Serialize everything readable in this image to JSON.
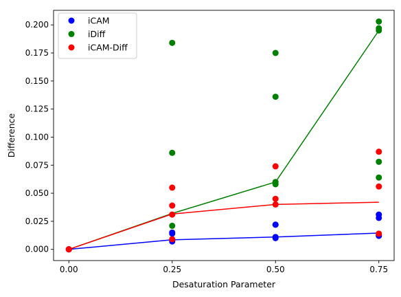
{
  "chart_data": {
    "type": "scatter",
    "title": "",
    "xlabel": "Desaturation Parameter",
    "ylabel": "Difference",
    "xlim": [
      -0.037,
      0.787
    ],
    "ylim": [
      -0.01,
      0.213
    ],
    "xticks": [
      0.0,
      0.25,
      0.5,
      0.75
    ],
    "xtick_labels": [
      "0.00",
      "0.25",
      "0.50",
      "0.75"
    ],
    "yticks": [
      0.0,
      0.025,
      0.05,
      0.075,
      0.1,
      0.125,
      0.15,
      0.175,
      0.2
    ],
    "ytick_labels": [
      "0.000",
      "0.025",
      "0.050",
      "0.075",
      "0.100",
      "0.125",
      "0.150",
      "0.175",
      "0.200"
    ],
    "grid": false,
    "legend_position": "top-left",
    "series": [
      {
        "name": "iCAM",
        "color": "#0000ff",
        "points": [
          [
            0.0,
            0.0
          ],
          [
            0.0,
            0.0
          ],
          [
            0.0,
            0.0
          ],
          [
            0.25,
            0.007
          ],
          [
            0.25,
            0.008
          ],
          [
            0.25,
            0.014
          ],
          [
            0.25,
            0.015
          ],
          [
            0.5,
            0.01
          ],
          [
            0.5,
            0.011
          ],
          [
            0.5,
            0.022
          ],
          [
            0.5,
            0.022
          ],
          [
            0.75,
            0.012
          ],
          [
            0.75,
            0.013
          ],
          [
            0.75,
            0.028
          ],
          [
            0.75,
            0.031
          ]
        ],
        "line": [
          [
            0.0,
            0.0
          ],
          [
            0.25,
            0.0085
          ],
          [
            0.5,
            0.011
          ],
          [
            0.75,
            0.0145
          ]
        ]
      },
      {
        "name": "iDiff",
        "color": "#008000",
        "points": [
          [
            0.0,
            0.0
          ],
          [
            0.0,
            0.0
          ],
          [
            0.0,
            0.0
          ],
          [
            0.25,
            0.021
          ],
          [
            0.25,
            0.086
          ],
          [
            0.25,
            0.184
          ],
          [
            0.5,
            0.058
          ],
          [
            0.5,
            0.06
          ],
          [
            0.5,
            0.136
          ],
          [
            0.5,
            0.175
          ],
          [
            0.75,
            0.064
          ],
          [
            0.75,
            0.078
          ],
          [
            0.75,
            0.195
          ],
          [
            0.75,
            0.197
          ],
          [
            0.75,
            0.203
          ]
        ],
        "line": [
          [
            0.0,
            0.0
          ],
          [
            0.25,
            0.032
          ],
          [
            0.5,
            0.06
          ],
          [
            0.75,
            0.195
          ]
        ]
      },
      {
        "name": "iCAM-Diff",
        "color": "#ff0000",
        "points": [
          [
            0.0,
            0.0
          ],
          [
            0.0,
            0.0
          ],
          [
            0.0,
            0.0
          ],
          [
            0.25,
            0.009
          ],
          [
            0.25,
            0.031
          ],
          [
            0.25,
            0.039
          ],
          [
            0.25,
            0.055
          ],
          [
            0.5,
            0.04
          ],
          [
            0.5,
            0.045
          ],
          [
            0.5,
            0.074
          ],
          [
            0.75,
            0.014
          ],
          [
            0.75,
            0.056
          ],
          [
            0.75,
            0.087
          ]
        ],
        "line": [
          [
            0.0,
            0.0
          ],
          [
            0.25,
            0.0315
          ],
          [
            0.5,
            0.04
          ],
          [
            0.75,
            0.042
          ]
        ]
      }
    ]
  }
}
